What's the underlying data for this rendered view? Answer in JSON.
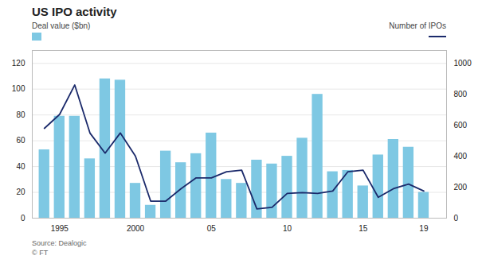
{
  "chart_data": {
    "type": "bar",
    "title": "US IPO activity",
    "annotations": [
      "Source: Dealogic\n© FT"
    ],
    "x": [
      1994,
      1995,
      1996,
      1997,
      1998,
      1999,
      2000,
      2001,
      2002,
      2003,
      2004,
      2005,
      2006,
      2007,
      2008,
      2009,
      2010,
      2011,
      2012,
      2013,
      2014,
      2015,
      2016,
      2017,
      2018,
      2019
    ],
    "xlim": [
      1993.2,
      2020.5
    ],
    "xticks": [
      1995,
      2000,
      {
        "value": 2005,
        "label": "05"
      },
      {
        "value": 2010,
        "label": "10"
      },
      {
        "value": 2015,
        "label": "15"
      },
      {
        "value": 2019,
        "label": "19"
      }
    ],
    "ylim": [
      0,
      130
    ],
    "yticks": [
      0,
      20,
      40,
      60,
      80,
      100,
      120
    ],
    "y2lim": [
      0,
      1083
    ],
    "y2ticks": [
      0,
      200,
      400,
      600,
      800,
      1000
    ],
    "grid": true,
    "series": [
      {
        "name": "Deal value ($bn)",
        "type": "bar",
        "color": "#7EC8E3",
        "values": [
          53,
          79,
          79,
          46,
          108,
          107,
          27,
          10,
          52,
          43,
          50,
          66,
          30,
          27,
          45,
          42,
          48,
          62,
          96,
          36,
          37,
          25,
          49,
          61,
          55,
          20
        ]
      },
      {
        "name": "Number of IPOs",
        "type": "line",
        "axis": "y2",
        "color": "#1B2A6B",
        "values": [
          580,
          670,
          860,
          550,
          420,
          550,
          400,
          110,
          110,
          190,
          260,
          260,
          300,
          310,
          60,
          70,
          160,
          165,
          160,
          175,
          300,
          310,
          135,
          190,
          220,
          175
        ]
      }
    ]
  }
}
